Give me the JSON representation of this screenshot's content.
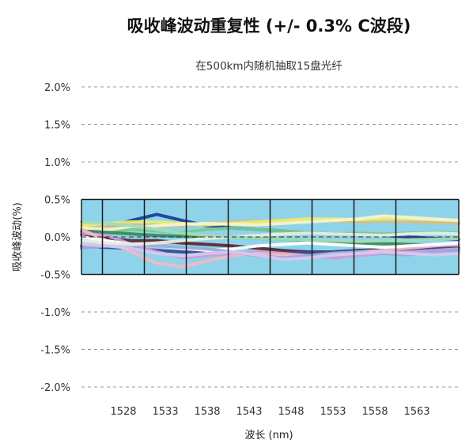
{
  "chart_data": {
    "type": "line",
    "title": "吸收峰波动重复性 (+/- 0.3% C波段)",
    "subtitle": "在500km内随机抽取15盘光纤",
    "xlabel": "波长 (nm)",
    "ylabel": "吸收峰波动(%)",
    "xlim": [
      1523,
      1568
    ],
    "ylim": [
      -2.0,
      2.0
    ],
    "x_ticks": [
      1528,
      1533,
      1538,
      1543,
      1548,
      1553,
      1558,
      1563
    ],
    "x_tick_labels": [
      "1528",
      "1533",
      "1538",
      "1543",
      "1548",
      "1553",
      "1558",
      "1563"
    ],
    "y_ticks": [
      2.0,
      1.5,
      1.0,
      0.5,
      0.0,
      -0.5,
      -1.0,
      -1.5,
      -2.0
    ],
    "y_tick_labels": [
      "2.0%",
      "1.5%",
      "1.0%",
      "0.5%",
      "0.0%",
      "-0.5%",
      "-1.0%",
      "-1.5%",
      "-2.0%"
    ],
    "band": {
      "ymin": -0.5,
      "ymax": 0.5,
      "color": "#8fd3ea"
    },
    "grid": "horizontal-dashed",
    "x": [
      1523,
      1526,
      1529,
      1532,
      1535,
      1538,
      1541,
      1544,
      1547,
      1550,
      1553,
      1556,
      1559,
      1562,
      1565,
      1568
    ],
    "series": [
      {
        "color": "#1f3f9a",
        "values": [
          0.05,
          0.12,
          0.22,
          0.3,
          0.22,
          0.15,
          0.12,
          0.1,
          0.08,
          0.05,
          0.04,
          0.03,
          0.02,
          0.0,
          -0.02,
          -0.03
        ]
      },
      {
        "color": "#d0c090",
        "values": [
          0.1,
          0.14,
          0.16,
          0.14,
          0.15,
          0.18,
          0.2,
          0.21,
          0.22,
          0.22,
          0.21,
          0.2,
          0.21,
          0.2,
          0.19,
          0.18
        ]
      },
      {
        "color": "#eaea70",
        "values": [
          0.15,
          0.18,
          0.2,
          0.2,
          0.18,
          0.16,
          0.18,
          0.2,
          0.22,
          0.24,
          0.24,
          0.23,
          0.24,
          0.24,
          0.23,
          0.22
        ]
      },
      {
        "color": "#f3f3d0",
        "values": [
          0.12,
          0.1,
          0.12,
          0.15,
          0.17,
          0.18,
          0.17,
          0.16,
          0.18,
          0.2,
          0.22,
          0.24,
          0.28,
          0.26,
          0.24,
          0.22
        ]
      },
      {
        "color": "#7ec78e",
        "values": [
          0.0,
          0.05,
          0.1,
          0.08,
          0.06,
          0.1,
          0.12,
          0.1,
          0.08,
          0.06,
          0.04,
          0.05,
          0.04,
          0.05,
          0.06,
          0.05
        ]
      },
      {
        "color": "#3a8c5c",
        "values": [
          0.08,
          0.06,
          0.04,
          0.02,
          0.01,
          0.0,
          0.0,
          -0.02,
          -0.03,
          -0.05,
          -0.06,
          -0.08,
          -0.09,
          -0.1,
          -0.11,
          -0.1
        ]
      },
      {
        "color": "#5a2a3a",
        "values": [
          0.02,
          -0.02,
          -0.05,
          -0.05,
          -0.08,
          -0.1,
          -0.12,
          -0.15,
          -0.18,
          -0.2,
          -0.2,
          -0.18,
          -0.17,
          -0.16,
          -0.15,
          -0.15
        ]
      },
      {
        "color": "#2f4f9a",
        "values": [
          -0.12,
          -0.14,
          -0.15,
          -0.18,
          -0.2,
          -0.21,
          -0.22,
          -0.22,
          -0.22,
          -0.21,
          -0.2,
          -0.19,
          -0.18,
          -0.17,
          -0.16,
          -0.15
        ]
      },
      {
        "color": "#c8a0d8",
        "values": [
          0.05,
          0.02,
          -0.1,
          -0.2,
          -0.28,
          -0.25,
          -0.22,
          -0.2,
          -0.22,
          -0.25,
          -0.28,
          -0.25,
          -0.22,
          -0.2,
          -0.18,
          -0.16
        ]
      },
      {
        "color": "#f2b8c6",
        "values": [
          0.1,
          -0.05,
          -0.2,
          -0.35,
          -0.4,
          -0.32,
          -0.25,
          -0.22,
          -0.24,
          -0.25,
          -0.22,
          -0.2,
          -0.18,
          -0.15,
          -0.12,
          -0.1
        ]
      },
      {
        "color": "#ffffff",
        "values": [
          0.0,
          -0.05,
          -0.1,
          -0.12,
          -0.15,
          -0.18,
          -0.16,
          -0.12,
          -0.1,
          -0.08,
          -0.1,
          -0.12,
          -0.14,
          -0.12,
          -0.1,
          -0.08
        ]
      },
      {
        "color": "#9fa8d8",
        "values": [
          -0.15,
          -0.12,
          -0.1,
          -0.12,
          -0.14,
          -0.16,
          -0.2,
          -0.25,
          -0.28,
          -0.25,
          -0.22,
          -0.2,
          -0.22,
          -0.24,
          -0.2,
          -0.18
        ]
      },
      {
        "color": "#e8ede0",
        "values": [
          -0.05,
          -0.08,
          -0.1,
          -0.08,
          -0.05,
          -0.02,
          0.0,
          0.02,
          0.04,
          0.05,
          0.04,
          0.03,
          0.02,
          0.04,
          0.05,
          0.04
        ]
      },
      {
        "color": "#a2dcb8",
        "values": [
          0.2,
          0.18,
          0.15,
          0.1,
          0.05,
          0.02,
          0.0,
          -0.02,
          -0.03,
          -0.04,
          -0.05,
          -0.06,
          -0.05,
          -0.04,
          -0.03,
          -0.02
        ]
      },
      {
        "color": "#d8c8f0",
        "values": [
          -0.1,
          -0.12,
          -0.15,
          -0.22,
          -0.25,
          -0.22,
          -0.2,
          -0.24,
          -0.3,
          -0.28,
          -0.24,
          -0.22,
          -0.2,
          -0.22,
          -0.24,
          -0.22
        ]
      }
    ]
  }
}
